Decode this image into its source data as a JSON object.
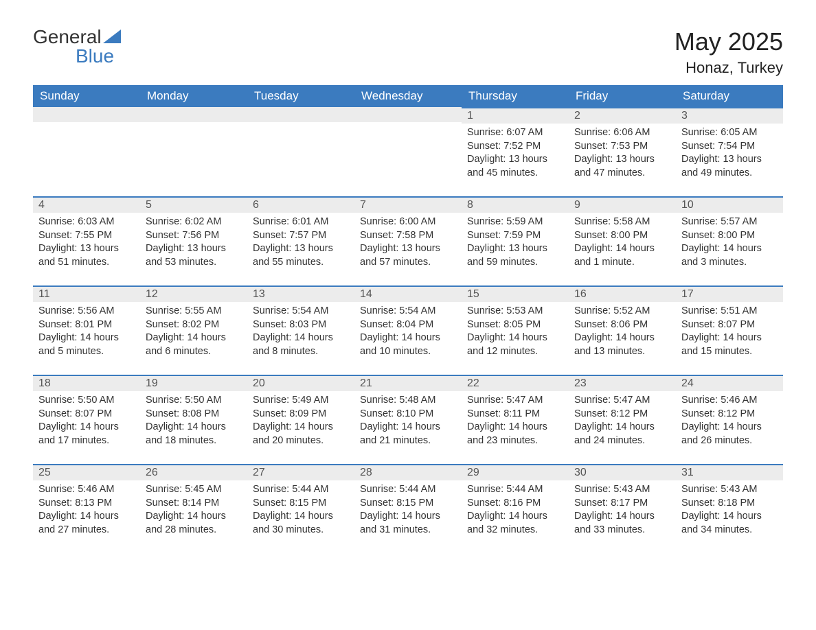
{
  "brand": {
    "part1": "General",
    "part2": "Blue"
  },
  "title": "May 2025",
  "location": "Honaz, Turkey",
  "colors": {
    "header_bg": "#3b7bbf",
    "header_text": "#ffffff",
    "daynum_bg": "#ececec",
    "daynum_text": "#555555",
    "body_text": "#333333",
    "row_rule": "#3b7bbf"
  },
  "layout": {
    "first_weekday_index": 4,
    "days_in_month": 31
  },
  "weekdays": [
    "Sunday",
    "Monday",
    "Tuesday",
    "Wednesday",
    "Thursday",
    "Friday",
    "Saturday"
  ],
  "days": [
    {
      "n": 1,
      "sunrise": "6:07 AM",
      "sunset": "7:52 PM",
      "daylight": "13 hours and 45 minutes."
    },
    {
      "n": 2,
      "sunrise": "6:06 AM",
      "sunset": "7:53 PM",
      "daylight": "13 hours and 47 minutes."
    },
    {
      "n": 3,
      "sunrise": "6:05 AM",
      "sunset": "7:54 PM",
      "daylight": "13 hours and 49 minutes."
    },
    {
      "n": 4,
      "sunrise": "6:03 AM",
      "sunset": "7:55 PM",
      "daylight": "13 hours and 51 minutes."
    },
    {
      "n": 5,
      "sunrise": "6:02 AM",
      "sunset": "7:56 PM",
      "daylight": "13 hours and 53 minutes."
    },
    {
      "n": 6,
      "sunrise": "6:01 AM",
      "sunset": "7:57 PM",
      "daylight": "13 hours and 55 minutes."
    },
    {
      "n": 7,
      "sunrise": "6:00 AM",
      "sunset": "7:58 PM",
      "daylight": "13 hours and 57 minutes."
    },
    {
      "n": 8,
      "sunrise": "5:59 AM",
      "sunset": "7:59 PM",
      "daylight": "13 hours and 59 minutes."
    },
    {
      "n": 9,
      "sunrise": "5:58 AM",
      "sunset": "8:00 PM",
      "daylight": "14 hours and 1 minute."
    },
    {
      "n": 10,
      "sunrise": "5:57 AM",
      "sunset": "8:00 PM",
      "daylight": "14 hours and 3 minutes."
    },
    {
      "n": 11,
      "sunrise": "5:56 AM",
      "sunset": "8:01 PM",
      "daylight": "14 hours and 5 minutes."
    },
    {
      "n": 12,
      "sunrise": "5:55 AM",
      "sunset": "8:02 PM",
      "daylight": "14 hours and 6 minutes."
    },
    {
      "n": 13,
      "sunrise": "5:54 AM",
      "sunset": "8:03 PM",
      "daylight": "14 hours and 8 minutes."
    },
    {
      "n": 14,
      "sunrise": "5:54 AM",
      "sunset": "8:04 PM",
      "daylight": "14 hours and 10 minutes."
    },
    {
      "n": 15,
      "sunrise": "5:53 AM",
      "sunset": "8:05 PM",
      "daylight": "14 hours and 12 minutes."
    },
    {
      "n": 16,
      "sunrise": "5:52 AM",
      "sunset": "8:06 PM",
      "daylight": "14 hours and 13 minutes."
    },
    {
      "n": 17,
      "sunrise": "5:51 AM",
      "sunset": "8:07 PM",
      "daylight": "14 hours and 15 minutes."
    },
    {
      "n": 18,
      "sunrise": "5:50 AM",
      "sunset": "8:07 PM",
      "daylight": "14 hours and 17 minutes."
    },
    {
      "n": 19,
      "sunrise": "5:50 AM",
      "sunset": "8:08 PM",
      "daylight": "14 hours and 18 minutes."
    },
    {
      "n": 20,
      "sunrise": "5:49 AM",
      "sunset": "8:09 PM",
      "daylight": "14 hours and 20 minutes."
    },
    {
      "n": 21,
      "sunrise": "5:48 AM",
      "sunset": "8:10 PM",
      "daylight": "14 hours and 21 minutes."
    },
    {
      "n": 22,
      "sunrise": "5:47 AM",
      "sunset": "8:11 PM",
      "daylight": "14 hours and 23 minutes."
    },
    {
      "n": 23,
      "sunrise": "5:47 AM",
      "sunset": "8:12 PM",
      "daylight": "14 hours and 24 minutes."
    },
    {
      "n": 24,
      "sunrise": "5:46 AM",
      "sunset": "8:12 PM",
      "daylight": "14 hours and 26 minutes."
    },
    {
      "n": 25,
      "sunrise": "5:46 AM",
      "sunset": "8:13 PM",
      "daylight": "14 hours and 27 minutes."
    },
    {
      "n": 26,
      "sunrise": "5:45 AM",
      "sunset": "8:14 PM",
      "daylight": "14 hours and 28 minutes."
    },
    {
      "n": 27,
      "sunrise": "5:44 AM",
      "sunset": "8:15 PM",
      "daylight": "14 hours and 30 minutes."
    },
    {
      "n": 28,
      "sunrise": "5:44 AM",
      "sunset": "8:15 PM",
      "daylight": "14 hours and 31 minutes."
    },
    {
      "n": 29,
      "sunrise": "5:44 AM",
      "sunset": "8:16 PM",
      "daylight": "14 hours and 32 minutes."
    },
    {
      "n": 30,
      "sunrise": "5:43 AM",
      "sunset": "8:17 PM",
      "daylight": "14 hours and 33 minutes."
    },
    {
      "n": 31,
      "sunrise": "5:43 AM",
      "sunset": "8:18 PM",
      "daylight": "14 hours and 34 minutes."
    }
  ],
  "labels": {
    "sunrise": "Sunrise:",
    "sunset": "Sunset:",
    "daylight": "Daylight:"
  }
}
